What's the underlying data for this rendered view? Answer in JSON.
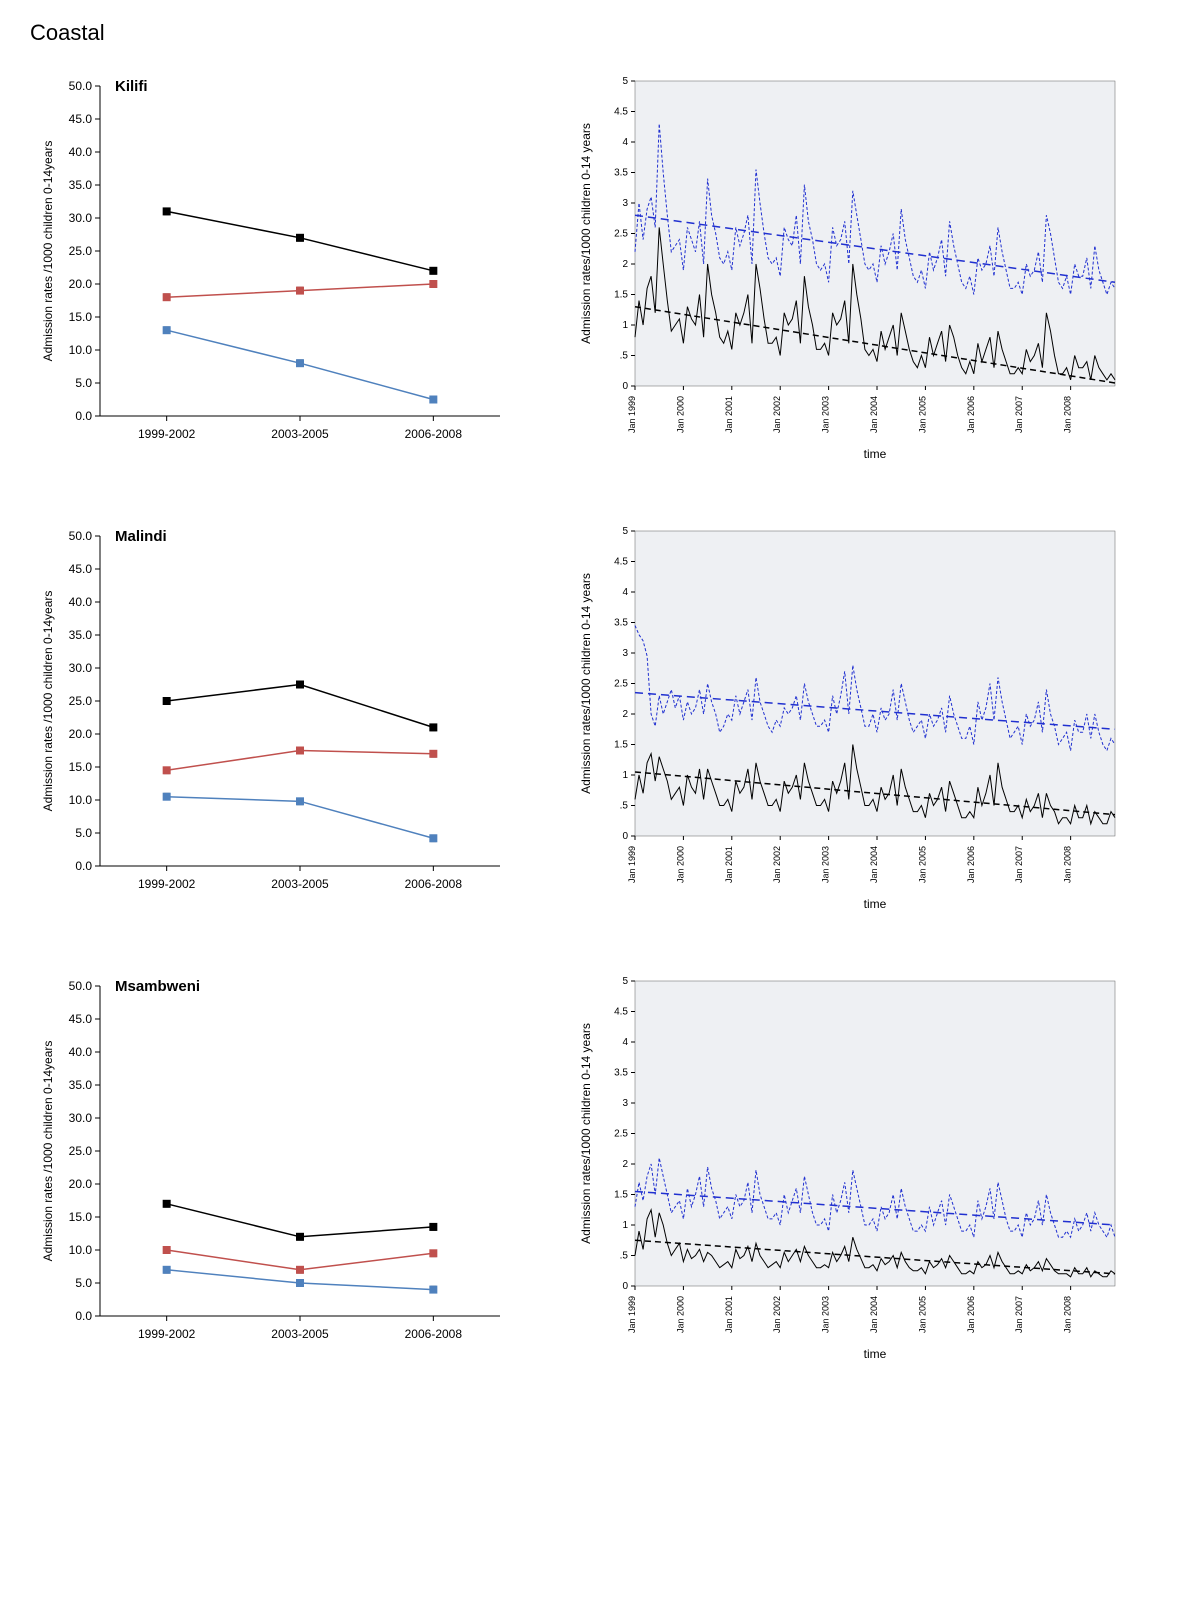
{
  "section_title": "Coastal",
  "left_chart": {
    "type": "line",
    "y_axis_label": "Admission rates /1000 children 0-14years",
    "x_categories": [
      "1999-2002",
      "2003-2005",
      "2006-2008"
    ],
    "ylim": [
      0,
      50
    ],
    "ytick_step": 5,
    "tick_label_fontsize": 12,
    "axis_label_fontsize": 12,
    "title_fontsize": 15,
    "title_fontweight": "bold",
    "series_colors": {
      "black": "#000000",
      "red": "#c0504d",
      "blue": "#4f81bd"
    },
    "marker_size": 4,
    "line_width": 1.5,
    "error_cap": 0.5,
    "background_color": "#ffffff"
  },
  "right_chart": {
    "type": "line",
    "y_axis_label": "Admission rates/1000 children 0-14 years",
    "x_axis_label": "time",
    "x_tick_labels": [
      "Jan 1999",
      "Jan 2000",
      "Jan 2001",
      "Jan 2002",
      "Jan 2003",
      "Jan 2004",
      "Jan 2005",
      "Jan 2006",
      "Jan 2007",
      "Jan 2008"
    ],
    "ylim": [
      0,
      5
    ],
    "ytick_step": 0.5,
    "tick_label_fontsize": 10,
    "axis_label_fontsize": 12,
    "background_color": "#eef0f3",
    "border_color": "#606060",
    "colors": {
      "blue": "#2030d0",
      "black": "#000000"
    },
    "months": 120,
    "line_width_data": 1,
    "line_width_trend": 1.5,
    "blue_dash": "3,2",
    "trend_dash_blue": "8,5",
    "trend_dash_black": "6,4"
  },
  "sites": [
    {
      "name": "Kilifi",
      "left": {
        "black": [
          31.0,
          27.0,
          22.0
        ],
        "red": [
          18.0,
          19.0,
          20.0
        ],
        "blue": [
          13.0,
          8.0,
          2.5
        ]
      },
      "right": {
        "blue_trend": [
          2.8,
          1.7
        ],
        "black_trend": [
          1.3,
          0.05
        ],
        "blue_series": [
          2.2,
          3.0,
          2.4,
          2.9,
          3.1,
          2.6,
          4.3,
          3.5,
          2.8,
          2.2,
          2.3,
          2.4,
          1.9,
          2.6,
          2.4,
          2.2,
          2.7,
          2.0,
          3.4,
          2.8,
          2.5,
          2.1,
          2.0,
          2.2,
          1.9,
          2.6,
          2.3,
          2.5,
          2.8,
          2.0,
          3.55,
          3.0,
          2.5,
          2.1,
          2.0,
          2.1,
          1.8,
          2.6,
          2.4,
          2.3,
          2.8,
          2.0,
          3.3,
          2.7,
          2.4,
          2.0,
          1.9,
          2.0,
          1.7,
          2.6,
          2.3,
          2.4,
          2.7,
          2.0,
          3.2,
          2.8,
          2.4,
          2.0,
          1.9,
          2.0,
          1.7,
          2.3,
          2.0,
          2.2,
          2.5,
          1.9,
          2.9,
          2.4,
          2.1,
          1.8,
          1.7,
          1.9,
          1.6,
          2.2,
          1.9,
          2.1,
          2.4,
          1.8,
          2.7,
          2.3,
          2.0,
          1.7,
          1.6,
          1.8,
          1.5,
          2.1,
          1.9,
          2.0,
          2.3,
          1.8,
          2.6,
          2.2,
          1.9,
          1.6,
          1.6,
          1.7,
          1.5,
          2.0,
          1.8,
          1.9,
          2.2,
          1.7,
          2.8,
          2.5,
          2.1,
          1.7,
          1.6,
          1.8,
          1.5,
          2.0,
          1.8,
          1.8,
          2.1,
          1.6,
          2.3,
          1.9,
          1.7,
          1.5,
          1.7,
          1.6
        ],
        "black_series": [
          0.8,
          1.4,
          1.0,
          1.6,
          1.8,
          1.2,
          2.6,
          2.0,
          1.4,
          0.9,
          1.0,
          1.1,
          0.7,
          1.3,
          1.1,
          1.0,
          1.5,
          0.8,
          2.0,
          1.5,
          1.2,
          0.8,
          0.7,
          0.9,
          0.6,
          1.2,
          1.0,
          1.2,
          1.5,
          0.7,
          2.0,
          1.6,
          1.1,
          0.7,
          0.7,
          0.8,
          0.5,
          1.2,
          1.0,
          1.1,
          1.4,
          0.7,
          1.8,
          1.3,
          1.0,
          0.6,
          0.6,
          0.7,
          0.5,
          1.2,
          1.0,
          1.1,
          1.4,
          0.7,
          2.0,
          1.5,
          1.1,
          0.6,
          0.5,
          0.6,
          0.4,
          0.9,
          0.6,
          0.8,
          1.0,
          0.5,
          1.2,
          0.9,
          0.6,
          0.4,
          0.3,
          0.5,
          0.3,
          0.8,
          0.5,
          0.7,
          0.9,
          0.4,
          1.0,
          0.8,
          0.5,
          0.3,
          0.2,
          0.4,
          0.2,
          0.7,
          0.4,
          0.6,
          0.8,
          0.3,
          0.9,
          0.6,
          0.4,
          0.2,
          0.2,
          0.3,
          0.2,
          0.6,
          0.4,
          0.5,
          0.7,
          0.3,
          1.2,
          0.9,
          0.5,
          0.2,
          0.2,
          0.3,
          0.1,
          0.5,
          0.3,
          0.3,
          0.4,
          0.1,
          0.5,
          0.3,
          0.2,
          0.1,
          0.2,
          0.1
        ]
      }
    },
    {
      "name": "Malindi",
      "left": {
        "black": [
          25.0,
          27.5,
          21.0
        ],
        "red": [
          14.5,
          17.5,
          17.0
        ],
        "blue": [
          10.5,
          9.8,
          4.2
        ]
      },
      "right": {
        "blue_trend": [
          2.35,
          1.75
        ],
        "black_trend": [
          1.05,
          0.35
        ],
        "blue_series": [
          3.45,
          3.3,
          3.2,
          2.95,
          2.0,
          1.8,
          2.3,
          2.0,
          2.2,
          2.4,
          2.1,
          2.3,
          1.9,
          2.2,
          2.0,
          2.1,
          2.4,
          2.0,
          2.5,
          2.2,
          2.0,
          1.7,
          1.8,
          2.0,
          1.9,
          2.3,
          2.0,
          2.2,
          2.4,
          1.9,
          2.6,
          2.2,
          2.0,
          1.8,
          1.7,
          1.9,
          1.8,
          2.1,
          2.0,
          2.1,
          2.3,
          1.9,
          2.5,
          2.2,
          2.0,
          1.8,
          1.8,
          1.9,
          1.7,
          2.3,
          2.0,
          2.3,
          2.7,
          2.0,
          2.8,
          2.4,
          2.1,
          1.8,
          1.8,
          2.0,
          1.7,
          2.1,
          1.9,
          2.0,
          2.4,
          1.9,
          2.5,
          2.2,
          1.9,
          1.7,
          1.8,
          1.9,
          1.6,
          2.0,
          1.8,
          1.9,
          2.1,
          1.7,
          2.3,
          2.0,
          1.8,
          1.6,
          1.6,
          1.8,
          1.5,
          2.2,
          1.9,
          2.1,
          2.5,
          1.9,
          2.6,
          2.2,
          1.9,
          1.6,
          1.7,
          1.8,
          1.5,
          2.0,
          1.8,
          1.9,
          2.2,
          1.7,
          2.4,
          2.0,
          1.8,
          1.5,
          1.6,
          1.7,
          1.4,
          1.9,
          1.7,
          1.7,
          2.0,
          1.6,
          2.0,
          1.7,
          1.5,
          1.4,
          1.6,
          1.5
        ],
        "black_series": [
          0.6,
          1.0,
          0.7,
          1.2,
          1.35,
          0.9,
          1.3,
          1.1,
          0.9,
          0.6,
          0.7,
          0.8,
          0.5,
          1.0,
          0.8,
          0.7,
          1.1,
          0.6,
          1.1,
          0.9,
          0.7,
          0.5,
          0.5,
          0.6,
          0.4,
          0.9,
          0.7,
          0.8,
          1.1,
          0.6,
          1.2,
          0.9,
          0.7,
          0.5,
          0.5,
          0.6,
          0.4,
          0.9,
          0.7,
          0.8,
          1.0,
          0.6,
          1.2,
          0.9,
          0.7,
          0.5,
          0.5,
          0.6,
          0.4,
          0.9,
          0.7,
          0.9,
          1.2,
          0.6,
          1.5,
          1.1,
          0.8,
          0.5,
          0.5,
          0.6,
          0.4,
          0.8,
          0.6,
          0.7,
          1.0,
          0.5,
          1.1,
          0.8,
          0.6,
          0.4,
          0.4,
          0.5,
          0.3,
          0.7,
          0.5,
          0.6,
          0.8,
          0.4,
          0.9,
          0.7,
          0.5,
          0.3,
          0.3,
          0.4,
          0.3,
          0.8,
          0.5,
          0.7,
          1.0,
          0.5,
          1.2,
          0.8,
          0.6,
          0.4,
          0.4,
          0.5,
          0.3,
          0.6,
          0.4,
          0.5,
          0.7,
          0.3,
          0.7,
          0.5,
          0.4,
          0.2,
          0.3,
          0.3,
          0.2,
          0.5,
          0.3,
          0.3,
          0.5,
          0.2,
          0.4,
          0.3,
          0.2,
          0.2,
          0.4,
          0.3
        ]
      }
    },
    {
      "name": "Msambweni",
      "left": {
        "black": [
          17.0,
          12.0,
          13.5
        ],
        "red": [
          10.0,
          7.0,
          9.5
        ],
        "blue": [
          7.0,
          5.0,
          4.0
        ]
      },
      "right": {
        "blue_trend": [
          1.55,
          1.0
        ],
        "black_trend": [
          0.75,
          0.2
        ],
        "blue_series": [
          1.3,
          1.7,
          1.4,
          1.8,
          2.0,
          1.5,
          2.1,
          1.8,
          1.5,
          1.2,
          1.3,
          1.4,
          1.1,
          1.6,
          1.3,
          1.5,
          1.8,
          1.3,
          1.95,
          1.6,
          1.4,
          1.1,
          1.2,
          1.3,
          1.1,
          1.5,
          1.3,
          1.4,
          1.7,
          1.2,
          1.9,
          1.5,
          1.3,
          1.1,
          1.1,
          1.2,
          1.0,
          1.5,
          1.2,
          1.4,
          1.6,
          1.2,
          1.8,
          1.5,
          1.2,
          1.0,
          1.0,
          1.1,
          0.9,
          1.5,
          1.2,
          1.4,
          1.7,
          1.2,
          1.9,
          1.6,
          1.3,
          1.0,
          1.0,
          1.1,
          0.9,
          1.3,
          1.1,
          1.2,
          1.5,
          1.1,
          1.6,
          1.3,
          1.1,
          0.9,
          0.9,
          1.0,
          0.9,
          1.3,
          1.0,
          1.2,
          1.4,
          1.0,
          1.5,
          1.3,
          1.1,
          0.9,
          0.9,
          1.0,
          0.8,
          1.4,
          1.1,
          1.3,
          1.6,
          1.1,
          1.7,
          1.4,
          1.1,
          0.9,
          0.9,
          1.0,
          0.8,
          1.2,
          1.0,
          1.1,
          1.4,
          1.0,
          1.5,
          1.2,
          1.0,
          0.8,
          0.8,
          0.9,
          0.8,
          1.1,
          0.9,
          1.0,
          1.2,
          0.9,
          1.2,
          1.0,
          0.9,
          0.8,
          1.0,
          0.8
        ],
        "black_series": [
          0.5,
          0.9,
          0.6,
          1.1,
          1.25,
          0.8,
          1.2,
          1.0,
          0.7,
          0.5,
          0.6,
          0.7,
          0.4,
          0.6,
          0.45,
          0.5,
          0.6,
          0.4,
          0.55,
          0.5,
          0.4,
          0.3,
          0.35,
          0.4,
          0.3,
          0.6,
          0.45,
          0.5,
          0.65,
          0.4,
          0.7,
          0.5,
          0.4,
          0.3,
          0.35,
          0.4,
          0.3,
          0.55,
          0.4,
          0.5,
          0.6,
          0.4,
          0.65,
          0.5,
          0.4,
          0.3,
          0.3,
          0.35,
          0.3,
          0.55,
          0.4,
          0.5,
          0.65,
          0.4,
          0.8,
          0.6,
          0.45,
          0.3,
          0.3,
          0.35,
          0.25,
          0.45,
          0.35,
          0.4,
          0.5,
          0.3,
          0.55,
          0.4,
          0.3,
          0.25,
          0.25,
          0.3,
          0.2,
          0.4,
          0.3,
          0.35,
          0.45,
          0.3,
          0.5,
          0.4,
          0.3,
          0.2,
          0.2,
          0.25,
          0.2,
          0.4,
          0.3,
          0.35,
          0.5,
          0.3,
          0.55,
          0.4,
          0.3,
          0.2,
          0.2,
          0.25,
          0.2,
          0.35,
          0.25,
          0.3,
          0.4,
          0.25,
          0.45,
          0.35,
          0.25,
          0.2,
          0.2,
          0.2,
          0.15,
          0.3,
          0.2,
          0.2,
          0.3,
          0.15,
          0.25,
          0.2,
          0.15,
          0.15,
          0.25,
          0.2
        ]
      }
    }
  ]
}
